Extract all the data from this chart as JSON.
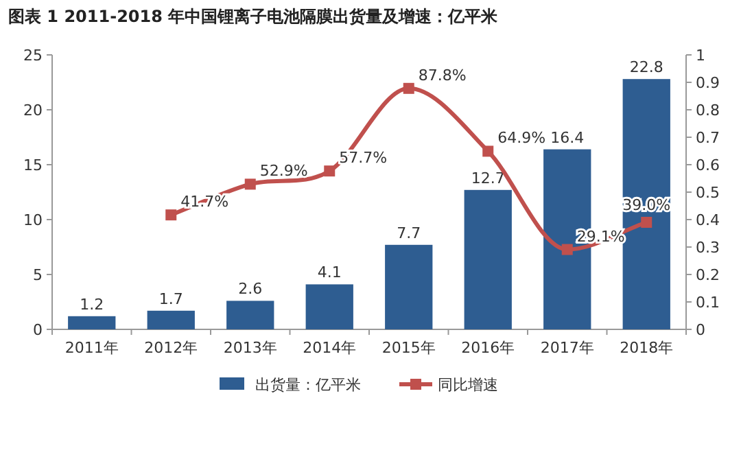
{
  "chart_data": {
    "type": "bar",
    "title": "图表 1   2011-2018 年中国锂离子电池隔膜出货量及增速：亿平米",
    "categories": [
      "2011年",
      "2012年",
      "2013年",
      "2014年",
      "2015年",
      "2016年",
      "2017年",
      "2018年"
    ],
    "series": [
      {
        "name": "出货量：亿平米",
        "color": "#2e5d91",
        "values": [
          1.2,
          1.7,
          2.6,
          4.1,
          7.7,
          12.7,
          16.4,
          22.8
        ],
        "value_labels": [
          "1.2",
          "1.7",
          "2.6",
          "4.1",
          "7.7",
          "12.7",
          "16.4",
          "22.8"
        ]
      },
      {
        "name": "同比增速",
        "type": "line",
        "axis": "y2",
        "color": "#c0504d",
        "marker": "square",
        "values": [
          null,
          0.417,
          0.529,
          0.577,
          0.878,
          0.649,
          0.291,
          0.39
        ],
        "value_labels": [
          null,
          "41.7%",
          "52.9%",
          "57.7%",
          "87.8%",
          "64.9%",
          "29.1%",
          "39.0%"
        ]
      }
    ],
    "ylim": [
      0,
      25
    ],
    "yticks": [
      0,
      5,
      10,
      15,
      20,
      25
    ],
    "y2lim": [
      0,
      1
    ],
    "y2ticks": [
      0,
      0.1,
      0.2,
      0.3,
      0.4,
      0.5,
      0.6,
      0.7,
      0.8,
      0.9,
      1
    ],
    "legend": "bottom",
    "grid": false
  }
}
